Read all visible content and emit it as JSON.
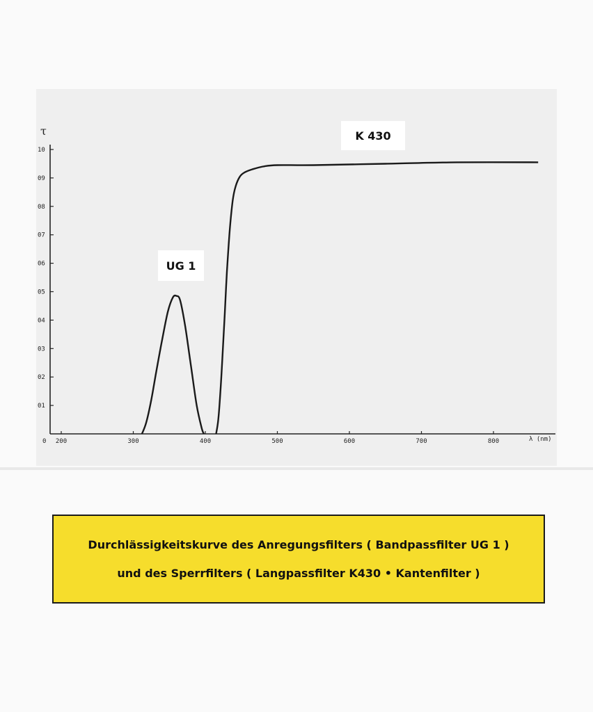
{
  "chart_data": {
    "type": "line",
    "ylabel": "τ",
    "xlabel": "λ (nm)",
    "ylim": [
      0,
      1.0
    ],
    "xlim": [
      200,
      880
    ],
    "y_ticks": [
      "0",
      "01",
      "02",
      "03",
      "04",
      "05",
      "06",
      "07",
      "08",
      "09",
      "10"
    ],
    "y_tick_values": [
      0,
      0.1,
      0.2,
      0.3,
      0.4,
      0.5,
      0.6,
      0.7,
      0.8,
      0.9,
      1.0
    ],
    "x_ticks": [
      "200",
      "300",
      "400",
      "500",
      "600",
      "700",
      "800"
    ],
    "x_tick_values": [
      200,
      300,
      400,
      500,
      600,
      700,
      800
    ],
    "grid": false,
    "series": [
      {
        "name": "UG 1",
        "x": [
          312,
          318,
          325,
          332,
          340,
          348,
          355,
          360,
          365,
          372,
          380,
          388,
          395,
          398
        ],
        "y": [
          0.0,
          0.04,
          0.12,
          0.22,
          0.33,
          0.43,
          0.48,
          0.485,
          0.47,
          0.38,
          0.24,
          0.1,
          0.02,
          0.0
        ]
      },
      {
        "name": "K 430",
        "x": [
          415,
          418,
          421,
          424,
          427,
          430,
          434,
          438,
          442,
          448,
          455,
          465,
          480,
          500,
          550,
          650,
          750,
          862
        ],
        "y": [
          0.0,
          0.05,
          0.15,
          0.28,
          0.42,
          0.57,
          0.72,
          0.82,
          0.87,
          0.905,
          0.92,
          0.93,
          0.94,
          0.945,
          0.945,
          0.95,
          0.955,
          0.955
        ]
      }
    ]
  },
  "caption": {
    "line1": "Durchlässigkeitskurve des Anregungsfilters ( Bandpassfilter UG 1 )",
    "line2": "und des Sperrfilters ( Langpassfilter K430 • Kantenfilter )"
  }
}
